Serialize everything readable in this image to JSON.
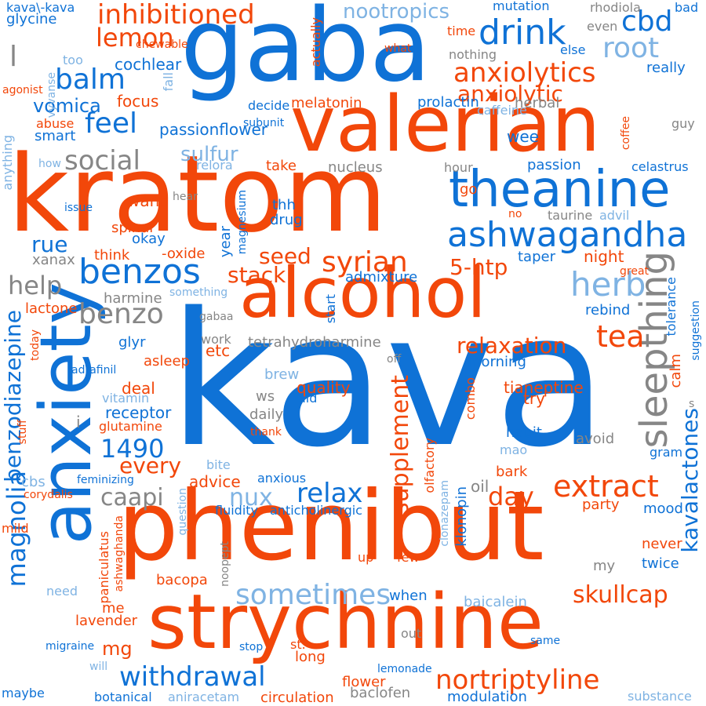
{
  "colors": {
    "blue": "#0f72d6",
    "orange": "#f2470a",
    "gray": "#868686",
    "light": "#7fb3e3",
    "background": "#ffffff"
  },
  "words": [
    {
      "text": "kava",
      "color": "blue"
    },
    {
      "text": "kratom",
      "color": "orange"
    },
    {
      "text": "gaba",
      "color": "blue"
    },
    {
      "text": "phenibut",
      "color": "orange"
    },
    {
      "text": "anxiety",
      "color": "blue"
    },
    {
      "text": "valerian",
      "color": "orange"
    },
    {
      "text": "strychnine",
      "color": "orange"
    },
    {
      "text": "alcohol",
      "color": "orange"
    },
    {
      "text": "theanine",
      "color": "blue"
    },
    {
      "text": "ashwagandha",
      "color": "blue"
    },
    {
      "text": "inhibitioned",
      "color": "orange"
    },
    {
      "text": "drink",
      "color": "blue"
    },
    {
      "text": "cbd",
      "color": "blue"
    },
    {
      "text": "root",
      "color": "light"
    },
    {
      "text": "nootropics",
      "color": "light"
    },
    {
      "text": "lemon",
      "color": "orange"
    },
    {
      "text": "balm",
      "color": "blue"
    },
    {
      "text": "anxiolytics",
      "color": "orange"
    },
    {
      "text": "anxiolytic",
      "color": "orange"
    },
    {
      "text": "feel",
      "color": "blue"
    },
    {
      "text": "social",
      "color": "gray"
    },
    {
      "text": "sulfur",
      "color": "light"
    },
    {
      "text": "vomica",
      "color": "blue"
    },
    {
      "text": "benzos",
      "color": "blue"
    },
    {
      "text": "syrian",
      "color": "orange"
    },
    {
      "text": "benzo",
      "color": "gray"
    },
    {
      "text": "herb",
      "color": "light"
    },
    {
      "text": "help",
      "color": "gray"
    },
    {
      "text": "sleepthing",
      "color": "gray"
    },
    {
      "text": "tea",
      "color": "orange"
    },
    {
      "text": "relaxation",
      "color": "orange"
    },
    {
      "text": "benzodiazepine",
      "color": "blue"
    },
    {
      "text": "magnolia",
      "color": "blue"
    },
    {
      "text": "1490",
      "color": "blue"
    },
    {
      "text": "caapi",
      "color": "gray"
    },
    {
      "text": "every",
      "color": "orange"
    },
    {
      "text": "supplement",
      "color": "orange"
    },
    {
      "text": "kavalactones",
      "color": "blue"
    },
    {
      "text": "extract",
      "color": "orange"
    },
    {
      "text": "day",
      "color": "orange"
    },
    {
      "text": "relax",
      "color": "blue"
    },
    {
      "text": "nux",
      "color": "light"
    },
    {
      "text": "withdrawal",
      "color": "blue"
    },
    {
      "text": "nortriptyline",
      "color": "orange"
    },
    {
      "text": "sometimes",
      "color": "light"
    },
    {
      "text": "skullcap",
      "color": "orange"
    },
    {
      "text": "seed",
      "color": "orange"
    },
    {
      "text": "stack",
      "color": "orange"
    },
    {
      "text": "5-htp",
      "color": "orange"
    },
    {
      "text": "rue",
      "color": "blue"
    },
    {
      "text": "mg",
      "color": "orange"
    },
    {
      "text": "l",
      "color": "gray"
    },
    {
      "text": "kava\\-kava",
      "color": "blue"
    },
    {
      "text": "glycine",
      "color": "blue"
    },
    {
      "text": "mutation",
      "color": "blue"
    },
    {
      "text": "rhodiola",
      "color": "gray"
    },
    {
      "text": "bad",
      "color": "blue"
    },
    {
      "text": "even",
      "color": "gray"
    },
    {
      "text": "else",
      "color": "blue"
    },
    {
      "text": "really",
      "color": "blue"
    },
    {
      "text": "time",
      "color": "orange"
    },
    {
      "text": "nothing",
      "color": "gray"
    },
    {
      "text": "what",
      "color": "orange"
    },
    {
      "text": "chewable",
      "color": "orange"
    },
    {
      "text": "too",
      "color": "light"
    },
    {
      "text": "agonist",
      "color": "orange"
    },
    {
      "text": "vyvanse",
      "color": "light"
    },
    {
      "text": "cochlear",
      "color": "blue"
    },
    {
      "text": "actually",
      "color": "orange"
    },
    {
      "text": "focus",
      "color": "orange"
    },
    {
      "text": "fall",
      "color": "light"
    },
    {
      "text": "decide",
      "color": "blue"
    },
    {
      "text": "melatonin",
      "color": "orange"
    },
    {
      "text": "prolactin",
      "color": "blue"
    },
    {
      "text": "herbal",
      "color": "gray"
    },
    {
      "text": "caffeine",
      "color": "light"
    },
    {
      "text": "coffee",
      "color": "orange"
    },
    {
      "text": "abuse",
      "color": "orange"
    },
    {
      "text": "smart",
      "color": "blue"
    },
    {
      "text": "passionflower",
      "color": "blue"
    },
    {
      "text": "subunit",
      "color": "blue"
    },
    {
      "text": "wee",
      "color": "blue"
    },
    {
      "text": "guy",
      "color": "gray"
    },
    {
      "text": "anything",
      "color": "light"
    },
    {
      "text": "how",
      "color": "light"
    },
    {
      "text": "relora",
      "color": "light"
    },
    {
      "text": "take",
      "color": "orange"
    },
    {
      "text": "nucleus",
      "color": "gray"
    },
    {
      "text": "hour",
      "color": "gray"
    },
    {
      "text": "passion",
      "color": "blue"
    },
    {
      "text": "celastrus",
      "color": "blue"
    },
    {
      "text": "hear",
      "color": "gray"
    },
    {
      "text": "go",
      "color": "orange"
    },
    {
      "text": "want",
      "color": "orange"
    },
    {
      "text": "issue",
      "color": "blue"
    },
    {
      "text": "magnesium",
      "color": "blue"
    },
    {
      "text": "thh",
      "color": "blue"
    },
    {
      "text": "drug",
      "color": "blue"
    },
    {
      "text": "no",
      "color": "orange"
    },
    {
      "text": "taurine",
      "color": "gray"
    },
    {
      "text": "advil",
      "color": "light"
    },
    {
      "text": "spinal",
      "color": "orange"
    },
    {
      "text": "okay",
      "color": "blue"
    },
    {
      "text": "year",
      "color": "blue"
    },
    {
      "text": "think",
      "color": "orange"
    },
    {
      "text": "-oxide",
      "color": "orange"
    },
    {
      "text": "xanax",
      "color": "gray"
    },
    {
      "text": "taper",
      "color": "blue"
    },
    {
      "text": "night",
      "color": "orange"
    },
    {
      "text": "great",
      "color": "orange"
    },
    {
      "text": "tolerance",
      "color": "blue"
    },
    {
      "text": "suggestion",
      "color": "blue"
    },
    {
      "text": "admixture",
      "color": "blue"
    },
    {
      "text": "something",
      "color": "light"
    },
    {
      "text": "harmine",
      "color": "gray"
    },
    {
      "text": "lactone",
      "color": "orange"
    },
    {
      "text": "gabaa",
      "color": "gray"
    },
    {
      "text": "start",
      "color": "blue"
    },
    {
      "text": "rebind",
      "color": "blue"
    },
    {
      "text": "today",
      "color": "orange"
    },
    {
      "text": "work",
      "color": "gray"
    },
    {
      "text": "etc",
      "color": "orange"
    },
    {
      "text": "tetrahydroharmine",
      "color": "gray"
    },
    {
      "text": "glyr",
      "color": "blue"
    },
    {
      "text": "asleep",
      "color": "orange"
    },
    {
      "text": "adrafinil",
      "color": "blue"
    },
    {
      "text": "off",
      "color": "gray"
    },
    {
      "text": "morning",
      "color": "blue"
    },
    {
      "text": "calm",
      "color": "orange"
    },
    {
      "text": "s",
      "color": "gray"
    },
    {
      "text": "brew",
      "color": "light"
    },
    {
      "text": "quality",
      "color": "orange"
    },
    {
      "text": "deal",
      "color": "orange"
    },
    {
      "text": "tianeptine",
      "color": "orange"
    },
    {
      "text": "aid",
      "color": "blue"
    },
    {
      "text": "combo",
      "color": "orange"
    },
    {
      "text": "try",
      "color": "orange"
    },
    {
      "text": "vitamin",
      "color": "light"
    },
    {
      "text": "ws",
      "color": "gray"
    },
    {
      "text": "receptor",
      "color": "blue"
    },
    {
      "text": "daily",
      "color": "gray"
    },
    {
      "text": "i",
      "color": "gray"
    },
    {
      "text": "glutamine",
      "color": "orange"
    },
    {
      "text": "stuff",
      "color": "orange"
    },
    {
      "text": "thank",
      "color": "orange"
    },
    {
      "text": "habit",
      "color": "blue"
    },
    {
      "text": "avoid",
      "color": "gray"
    },
    {
      "text": "mao",
      "color": "light"
    },
    {
      "text": "gram",
      "color": "blue"
    },
    {
      "text": "bite",
      "color": "light"
    },
    {
      "text": "cbs",
      "color": "light"
    },
    {
      "text": "feminizing",
      "color": "blue"
    },
    {
      "text": "advice",
      "color": "orange"
    },
    {
      "text": "anxious",
      "color": "blue"
    },
    {
      "text": "olfactory",
      "color": "orange"
    },
    {
      "text": "clonazepam",
      "color": "light"
    },
    {
      "text": "klonopin",
      "color": "blue"
    },
    {
      "text": "oil",
      "color": "gray"
    },
    {
      "text": "bark",
      "color": "orange"
    },
    {
      "text": "party",
      "color": "orange"
    },
    {
      "text": "mood",
      "color": "blue"
    },
    {
      "text": "corydalis",
      "color": "orange"
    },
    {
      "text": "question",
      "color": "light"
    },
    {
      "text": "fluidity",
      "color": "blue"
    },
    {
      "text": "anticholinergic",
      "color": "blue"
    },
    {
      "text": "mild",
      "color": "orange"
    },
    {
      "text": "ashwaghanda",
      "color": "orange"
    },
    {
      "text": "paniculatus",
      "color": "orange"
    },
    {
      "text": "noopept",
      "color": "gray"
    },
    {
      "text": "up",
      "color": "orange"
    },
    {
      "text": "few",
      "color": "orange"
    },
    {
      "text": "my",
      "color": "gray"
    },
    {
      "text": "never",
      "color": "orange"
    },
    {
      "text": "twice",
      "color": "blue"
    },
    {
      "text": "need",
      "color": "light"
    },
    {
      "text": "bacopa",
      "color": "orange"
    },
    {
      "text": "when",
      "color": "blue"
    },
    {
      "text": "baicalein",
      "color": "light"
    },
    {
      "text": "me",
      "color": "orange"
    },
    {
      "text": "lavender",
      "color": "orange"
    },
    {
      "text": "out",
      "color": "gray"
    },
    {
      "text": "same",
      "color": "blue"
    },
    {
      "text": "migraine",
      "color": "blue"
    },
    {
      "text": "stop",
      "color": "blue"
    },
    {
      "text": "st.",
      "color": "orange"
    },
    {
      "text": "long",
      "color": "orange"
    },
    {
      "text": "will",
      "color": "light"
    },
    {
      "text": "flower",
      "color": "orange"
    },
    {
      "text": "lemonade",
      "color": "blue"
    },
    {
      "text": "maybe",
      "color": "blue"
    },
    {
      "text": "botanical",
      "color": "blue"
    },
    {
      "text": "aniracetam",
      "color": "light"
    },
    {
      "text": "circulation",
      "color": "orange"
    },
    {
      "text": "baclofen",
      "color": "gray"
    },
    {
      "text": "modulation",
      "color": "blue"
    },
    {
      "text": "substance",
      "color": "light"
    }
  ]
}
